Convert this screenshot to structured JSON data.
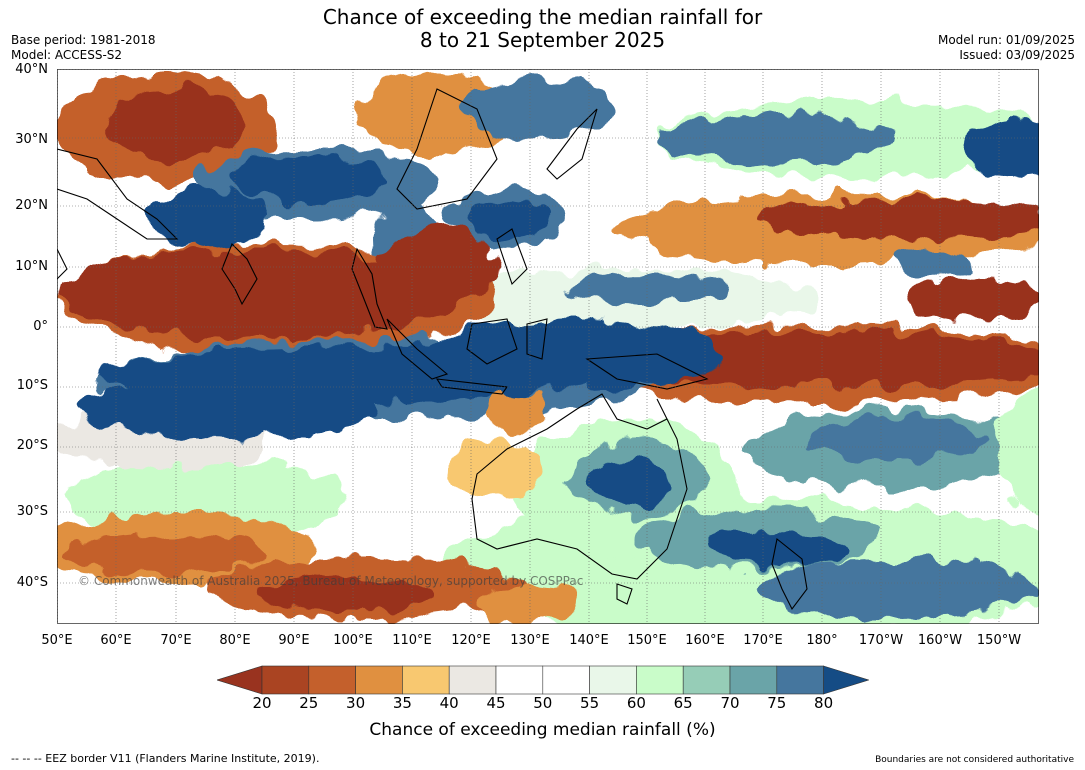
{
  "header": {
    "title_line1": "Chance of exceeding the median rainfall for",
    "title_line2": "8 to 21 September 2025",
    "base_period": "Base period: 1981-2018",
    "model": "Model: ACCESS-S2",
    "model_run": "Model run: 01/09/2025",
    "issued": "Issued: 03/09/2025"
  },
  "map": {
    "copyright": "© Commonwealth of Australia 2025, Bureau of Meteorology, supported by COSPPac",
    "lat_labels": [
      "40°N",
      "30°N",
      "20°N",
      "10°N",
      "0°",
      "10°S",
      "20°S",
      "30°S",
      "40°S"
    ],
    "lon_labels": [
      "50°E",
      "60°E",
      "70°E",
      "80°E",
      "90°E",
      "100°E",
      "110°E",
      "120°E",
      "130°E",
      "140°E",
      "150°E",
      "160°E",
      "170°E",
      "180°",
      "170°W",
      "160°W",
      "150°W"
    ]
  },
  "colorbar": {
    "title": "Chance of exceeding median rainfall (%)",
    "ticks": [
      "20",
      "25",
      "30",
      "35",
      "40",
      "45",
      "50",
      "55",
      "60",
      "65",
      "70",
      "75",
      "80"
    ],
    "colors": [
      "#99331f",
      "#aa4422",
      "#c4602c",
      "#e09040",
      "#f8c870",
      "#ebe8e3",
      "#ffffff",
      "#ffffff",
      "#e9f7e9",
      "#c9fcc9",
      "#96cdb7",
      "#6aa4a8",
      "#45769e",
      "#154c85"
    ]
  },
  "footer": {
    "eez": "--  --  -- EEZ border V11 (Flanders Marine Institute, 2019).",
    "boundaries": "Boundaries are not considered authoritative"
  }
}
